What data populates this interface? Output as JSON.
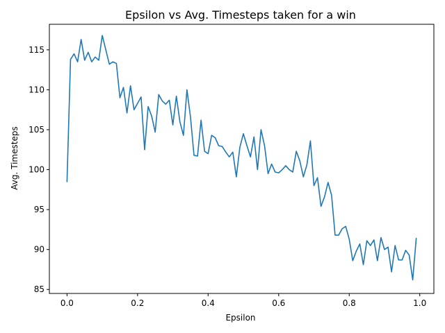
{
  "chart_data": {
    "type": "line",
    "title": "Epsilon vs Avg. Timesteps taken for a win",
    "xlabel": "Epsilon",
    "ylabel": "Avg. Timesteps",
    "xlim": [
      -0.05,
      1.04
    ],
    "ylim": [
      84.5,
      118.2
    ],
    "xticks": [
      0.0,
      0.2,
      0.4,
      0.6,
      0.8,
      1.0
    ],
    "xtick_labels": [
      "0.0",
      "0.2",
      "0.4",
      "0.6",
      "0.8",
      "1.0"
    ],
    "yticks": [
      85,
      90,
      95,
      100,
      105,
      110,
      115
    ],
    "ytick_labels": [
      "85",
      "90",
      "95",
      "100",
      "105",
      "110",
      "115"
    ],
    "grid": false,
    "color": "#1f77b4",
    "x": [
      0.0,
      0.01,
      0.02,
      0.03,
      0.04,
      0.05,
      0.06,
      0.07,
      0.08,
      0.09,
      0.1,
      0.11,
      0.12,
      0.13,
      0.14,
      0.15,
      0.16,
      0.17,
      0.18,
      0.19,
      0.2,
      0.21,
      0.22,
      0.23,
      0.24,
      0.25,
      0.26,
      0.27,
      0.28,
      0.29,
      0.3,
      0.31,
      0.32,
      0.33,
      0.34,
      0.35,
      0.36,
      0.37,
      0.38,
      0.39,
      0.4,
      0.41,
      0.42,
      0.43,
      0.44,
      0.45,
      0.46,
      0.47,
      0.48,
      0.49,
      0.5,
      0.51,
      0.52,
      0.53,
      0.54,
      0.55,
      0.56,
      0.57,
      0.58,
      0.59,
      0.6,
      0.61,
      0.62,
      0.63,
      0.64,
      0.65,
      0.66,
      0.67,
      0.68,
      0.69,
      0.7,
      0.71,
      0.72,
      0.73,
      0.74,
      0.75,
      0.76,
      0.77,
      0.78,
      0.79,
      0.8,
      0.81,
      0.82,
      0.83,
      0.84,
      0.85,
      0.86,
      0.87,
      0.88,
      0.89,
      0.9,
      0.91,
      0.92,
      0.93,
      0.94,
      0.95,
      0.96,
      0.97,
      0.98,
      0.99
    ],
    "y": [
      98.5,
      113.8,
      114.5,
      113.5,
      116.3,
      113.7,
      114.7,
      113.5,
      114.1,
      113.7,
      116.8,
      115.0,
      113.2,
      113.5,
      113.3,
      109.0,
      110.3,
      107.1,
      110.5,
      107.5,
      108.3,
      109.1,
      102.5,
      107.9,
      106.7,
      104.7,
      109.4,
      108.6,
      108.2,
      108.7,
      105.6,
      109.2,
      106.0,
      104.3,
      110.0,
      106.6,
      101.8,
      101.7,
      106.2,
      102.3,
      102.0,
      104.3,
      104.0,
      103.0,
      102.9,
      102.2,
      101.6,
      102.2,
      99.1,
      102.8,
      104.5,
      103.0,
      101.6,
      104.1,
      100.0,
      105.0,
      103.0,
      99.5,
      100.7,
      99.7,
      99.6,
      100.0,
      100.5,
      100.0,
      99.7,
      102.3,
      101.1,
      99.1,
      100.6,
      103.6,
      98.0,
      99.0,
      95.4,
      96.6,
      98.4,
      96.8,
      91.8,
      91.8,
      92.6,
      92.9,
      91.3,
      88.6,
      89.8,
      90.7,
      88.1,
      91.1,
      90.5,
      91.2,
      88.6,
      91.5,
      90.0,
      90.3,
      87.2,
      90.5,
      88.7,
      88.7,
      89.9,
      89.3,
      86.2,
      91.4
    ]
  }
}
